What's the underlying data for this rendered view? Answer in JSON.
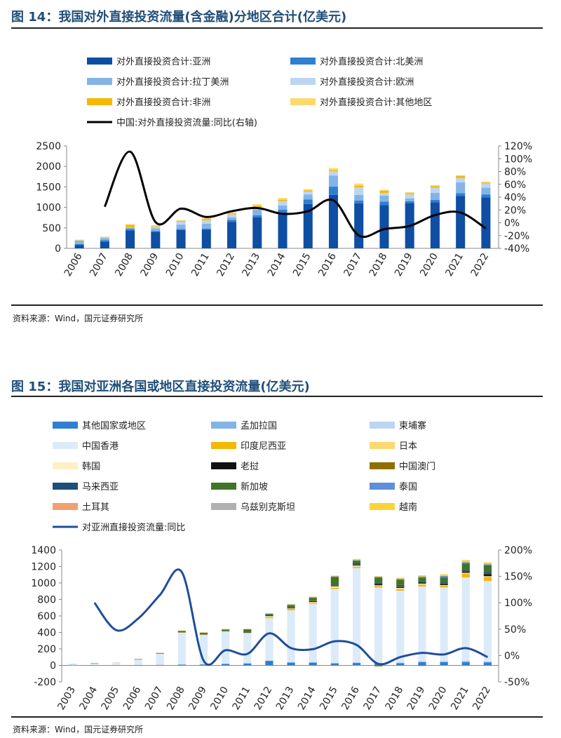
{
  "figures": [
    {
      "title": "图 14：我国对外直接投资流量(含金融)分地区合计(亿美元)",
      "source": "资料来源：Wind，国元证券研究所"
    },
    {
      "title": "图 15：我国对亚洲各国或地区直接投资流量(亿美元)",
      "source": "资料来源：Wind，国元证券研究所"
    }
  ],
  "chart_data": [
    {
      "type": "bar",
      "stacked": true,
      "categories": [
        "2006",
        "2007",
        "2008",
        "2009",
        "2010",
        "2011",
        "2012",
        "2013",
        "2014",
        "2015",
        "2016",
        "2017",
        "2018",
        "2019",
        "2020",
        "2021",
        "2022"
      ],
      "series": [
        {
          "name": "对外直接投资合计:亚洲",
          "color": "#0e4ea3",
          "values": [
            77,
            166,
            435,
            404,
            448,
            455,
            648,
            756,
            850,
            1083,
            1303,
            1100,
            1055,
            1108,
            1123,
            1281,
            1243
          ]
        },
        {
          "name": "对外直接投资合计:北美洲",
          "color": "#2f7fd1",
          "values": [
            26,
            32,
            36,
            15,
            26,
            25,
            49,
            49,
            92,
            107,
            203,
            65,
            87,
            44,
            63,
            66,
            73
          ]
        },
        {
          "name": "对外直接投资合计:拉丁美洲",
          "color": "#83b4e6",
          "values": [
            85,
            49,
            37,
            73,
            106,
            119,
            62,
            143,
            105,
            126,
            272,
            140,
            146,
            64,
            166,
            261,
            164
          ]
        },
        {
          "name": "对外直接投资合计:欧洲",
          "color": "#bcd6f2",
          "values": [
            6,
            15,
            9,
            34,
            68,
            83,
            70,
            59,
            108,
            71,
            106,
            184,
            65,
            106,
            127,
            108,
            103
          ]
        },
        {
          "name": "对外直接投资合计:非洲",
          "color": "#f5b800",
          "values": [
            5,
            16,
            55,
            14,
            21,
            32,
            25,
            34,
            32,
            30,
            24,
            41,
            54,
            27,
            42,
            50,
            18
          ]
        },
        {
          "name": "对外直接投资合计:其他地区",
          "color": "#fcd96e",
          "values": [
            13,
            7,
            20,
            25,
            19,
            32,
            24,
            37,
            43,
            27,
            52,
            52,
            23,
            23,
            22,
            22,
            29
          ]
        }
      ],
      "line": {
        "name": "中国:对外直接投资流量:同比(右轴)",
        "color": "#000000",
        "values": [
          null,
          25,
          111,
          1,
          22,
          9,
          18,
          23,
          14,
          18,
          35,
          -20,
          -10,
          -5,
          12,
          16,
          -9
        ]
      },
      "ylim": [
        0,
        2500
      ],
      "yticks": [
        0,
        500,
        1000,
        1500,
        2000,
        2500
      ],
      "y2lim": [
        -40,
        120
      ],
      "y2ticks": [
        -40,
        -20,
        0,
        20,
        40,
        60,
        80,
        100,
        120
      ],
      "y2ticklabels": [
        "-40%",
        "-20%",
        "0%",
        "20%",
        "40%",
        "60%",
        "80%",
        "100%",
        "120%"
      ],
      "legend_position": "top"
    },
    {
      "type": "bar",
      "stacked": true,
      "categories": [
        "2003",
        "2004",
        "2005",
        "2006",
        "2007",
        "2008",
        "2009",
        "2010",
        "2011",
        "2012",
        "2013",
        "2014",
        "2015",
        "2016",
        "2017",
        "2018",
        "2019",
        "2020",
        "2021",
        "2022"
      ],
      "series": [
        {
          "name": "其他国家或地区",
          "color": "#2f7fd1",
          "values": [
            2,
            3,
            3,
            4,
            6,
            10,
            12,
            18,
            24,
            55,
            35,
            35,
            25,
            30,
            25,
            25,
            40,
            40,
            40,
            35
          ]
        },
        {
          "name": "孟加拉国",
          "color": "#83b4e6",
          "values": [
            0,
            0,
            0,
            0,
            0,
            0,
            0,
            0,
            0,
            0,
            1,
            1,
            2,
            2,
            1,
            5,
            6,
            5,
            10,
            8
          ]
        },
        {
          "name": "柬埔寨",
          "color": "#bcd6f2",
          "values": [
            0,
            0,
            0,
            0,
            1,
            2,
            2,
            5,
            5,
            6,
            5,
            4,
            4,
            6,
            7,
            8,
            7,
            10,
            5,
            6
          ]
        },
        {
          "name": "中国香港",
          "color": "#dcebf9",
          "values": [
            12,
            24,
            34,
            69,
            137,
            386,
            356,
            385,
            357,
            512,
            628,
            708,
            897,
            1142,
            911,
            868,
            905,
            892,
            1012,
            975
          ]
        },
        {
          "name": "印度尼西亚",
          "color": "#f5b800",
          "values": [
            0,
            1,
            1,
            1,
            1,
            2,
            2,
            2,
            6,
            14,
            16,
            13,
            15,
            15,
            17,
            19,
            22,
            22,
            44,
            45
          ]
        },
        {
          "name": "日本",
          "color": "#fcd96e",
          "values": [
            0,
            0,
            0,
            0,
            0,
            1,
            1,
            3,
            2,
            2,
            4,
            4,
            2,
            3,
            4,
            5,
            7,
            5,
            8,
            9
          ]
        },
        {
          "name": "韩国",
          "color": "#fdf0c4",
          "values": [
            0,
            1,
            1,
            0,
            0,
            1,
            3,
            3,
            3,
            9,
            3,
            5,
            13,
            11,
            7,
            10,
            6,
            1,
            5,
            4
          ]
        },
        {
          "name": "老挝",
          "color": "#111111",
          "values": [
            0,
            0,
            0,
            0,
            2,
            1,
            2,
            3,
            5,
            8,
            8,
            10,
            5,
            3,
            12,
            12,
            11,
            15,
            13,
            25
          ]
        },
        {
          "name": "中国澳门",
          "color": "#8f6e00",
          "values": [
            0,
            0,
            0,
            0,
            0,
            2,
            5,
            1,
            2,
            1,
            4,
            6,
            1,
            9,
            -11,
            7,
            -4,
            4,
            3,
            8
          ]
        },
        {
          "name": "马来西亚",
          "color": "#1f4e79",
          "values": [
            0,
            0,
            0,
            1,
            0,
            0,
            1,
            2,
            1,
            2,
            6,
            5,
            5,
            18,
            17,
            17,
            11,
            14,
            13,
            16
          ]
        },
        {
          "name": "新加坡",
          "color": "#3f7429",
          "values": [
            0,
            1,
            0,
            1,
            4,
            16,
            14,
            11,
            33,
            15,
            20,
            28,
            104,
            32,
            63,
            64,
            48,
            59,
            84,
            83
          ]
        },
        {
          "name": "泰国",
          "color": "#5b8fdb",
          "values": [
            1,
            0,
            0,
            0,
            1,
            0,
            0,
            7,
            2,
            5,
            8,
            8,
            4,
            6,
            11,
            7,
            14,
            19,
            15,
            13
          ]
        },
        {
          "name": "土耳其",
          "color": "#f0a070",
          "values": [
            0,
            0,
            0,
            0,
            0,
            0,
            0,
            0,
            0,
            1,
            2,
            1,
            6,
            -1,
            0,
            4,
            0,
            1,
            1,
            1
          ]
        },
        {
          "name": "乌兹别克斯坦",
          "color": "#b0b0b0",
          "values": [
            0,
            0,
            0,
            0,
            0,
            0,
            0,
            0,
            1,
            0,
            0,
            2,
            1,
            1,
            -1,
            1,
            -4,
            -1,
            4,
            5
          ]
        },
        {
          "name": "越南",
          "color": "#fcd23a",
          "values": [
            0,
            0,
            0,
            0,
            1,
            1,
            1,
            3,
            2,
            3,
            5,
            3,
            6,
            13,
            8,
            11,
            16,
            19,
            22,
            17
          ]
        }
      ],
      "line": {
        "name": "对亚洲直接投资流量:同比",
        "color": "#1f4e9a",
        "values": [
          null,
          100,
          48,
          70,
          115,
          158,
          -10,
          10,
          3,
          42,
          14,
          12,
          27,
          20,
          -16,
          -3,
          5,
          2,
          14,
          -3
        ]
      },
      "ylim": [
        -200,
        1400
      ],
      "yticks": [
        -200,
        0,
        200,
        400,
        600,
        800,
        1000,
        1200,
        1400
      ],
      "y2lim": [
        -50,
        200
      ],
      "y2ticks": [
        -50,
        0,
        50,
        100,
        150,
        200
      ],
      "y2ticklabels": [
        "-50%",
        "0%",
        "50%",
        "100%",
        "150%",
        "200%"
      ],
      "legend_position": "top"
    }
  ]
}
